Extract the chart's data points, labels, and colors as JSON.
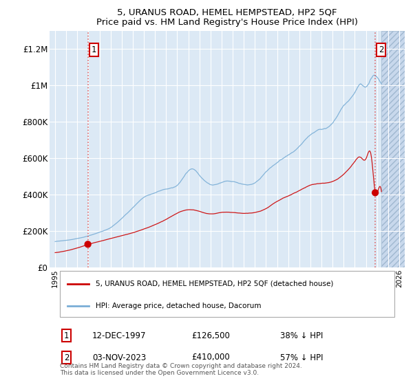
{
  "title": "5, URANUS ROAD, HEMEL HEMPSTEAD, HP2 5QF",
  "subtitle": "Price paid vs. HM Land Registry's House Price Index (HPI)",
  "background_color": "#ffffff",
  "plot_bg_color": "#dce9f5",
  "red_line_color": "#cc0000",
  "blue_line_color": "#7aaed6",
  "grid_color": "#ffffff",
  "sale1_date": 1997.95,
  "sale1_price": 126500,
  "sale1_label": "1",
  "sale2_date": 2023.84,
  "sale2_price": 410000,
  "sale2_label": "2",
  "ylim_min": 0,
  "ylim_max": 1300000,
  "xlim_min": 1994.5,
  "xlim_max": 2026.5,
  "yticks": [
    0,
    200000,
    400000,
    600000,
    800000,
    1000000,
    1200000
  ],
  "ytick_labels": [
    "£0",
    "£200K",
    "£400K",
    "£600K",
    "£800K",
    "£1M",
    "£1.2M"
  ],
  "xticks": [
    1995,
    1996,
    1997,
    1998,
    1999,
    2000,
    2001,
    2002,
    2003,
    2004,
    2005,
    2006,
    2007,
    2008,
    2009,
    2010,
    2011,
    2012,
    2013,
    2014,
    2015,
    2016,
    2017,
    2018,
    2019,
    2020,
    2021,
    2022,
    2023,
    2024,
    2025,
    2026
  ],
  "legend_red_label": "5, URANUS ROAD, HEMEL HEMPSTEAD, HP2 5QF (detached house)",
  "legend_blue_label": "HPI: Average price, detached house, Dacorum",
  "fn1_num": "1",
  "fn1_date": "12-DEC-1997",
  "fn1_price": "£126,500",
  "fn1_hpi": "38% ↓ HPI",
  "fn2_num": "2",
  "fn2_date": "03-NOV-2023",
  "fn2_price": "£410,000",
  "fn2_hpi": "57% ↓ HPI",
  "copyright_text": "Contains HM Land Registry data © Crown copyright and database right 2024.\nThis data is licensed under the Open Government Licence v3.0.",
  "hatch_start": 2024.42
}
